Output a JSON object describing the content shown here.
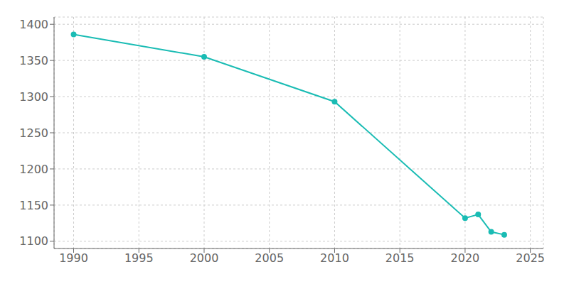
{
  "chart_data": {
    "type": "line",
    "x": [
      1990,
      2000,
      2010,
      2020,
      2021,
      2022,
      2023
    ],
    "values": [
      1386,
      1355,
      1293,
      1132,
      1137,
      1113,
      1109
    ],
    "color": "#1ABCB4",
    "marker": "circle",
    "xlim": [
      1988.5,
      2026
    ],
    "xticks": [
      1990,
      1995,
      2000,
      2005,
      2010,
      2015,
      2020,
      2025
    ],
    "ylim": [
      1090,
      1410
    ],
    "yticks": [
      1100,
      1150,
      1200,
      1250,
      1300,
      1350,
      1400
    ],
    "grid": true
  }
}
